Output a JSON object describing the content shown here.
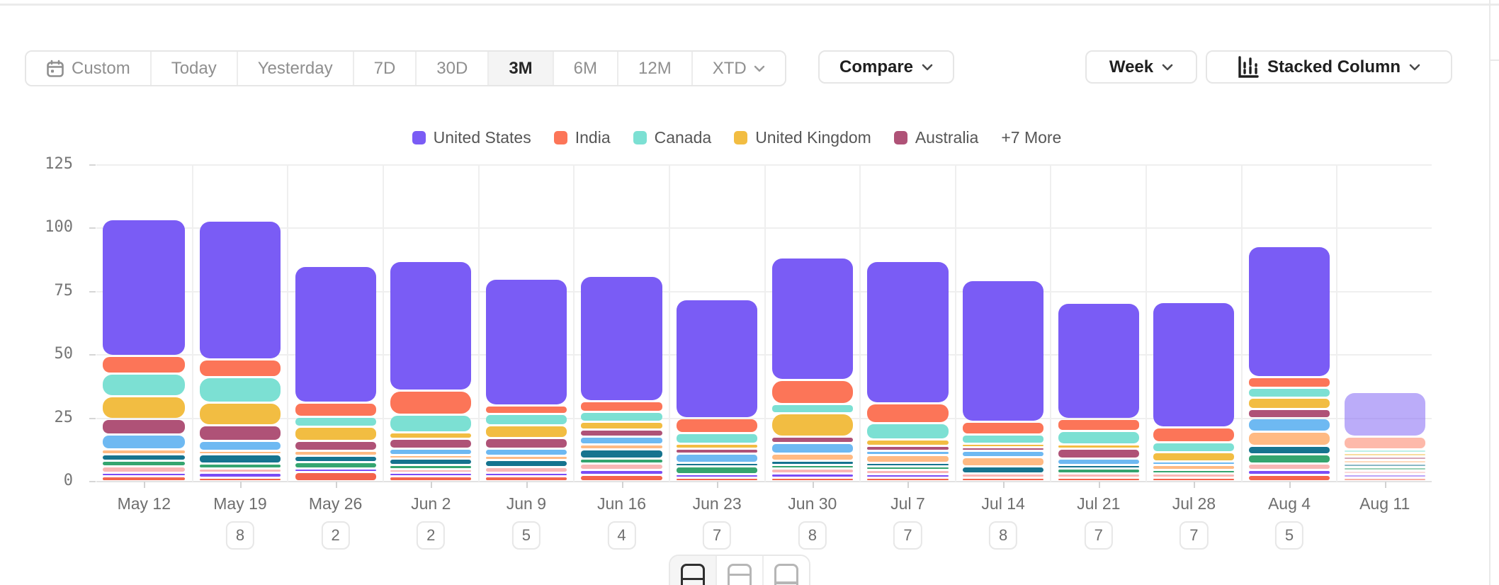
{
  "toolbar": {
    "date_ranges": [
      {
        "label": "Custom",
        "icon": "calendar-icon",
        "selected": false
      },
      {
        "label": "Today",
        "selected": false
      },
      {
        "label": "Yesterday",
        "selected": false
      },
      {
        "label": "7D",
        "selected": false
      },
      {
        "label": "30D",
        "selected": false
      },
      {
        "label": "3M",
        "selected": true
      },
      {
        "label": "6M",
        "selected": false
      },
      {
        "label": "12M",
        "selected": false
      },
      {
        "label": "XTD",
        "selected": false,
        "chevron": true
      }
    ],
    "compare_label": "Compare",
    "granularity_label": "Week",
    "chart_type_label": "Stacked Column"
  },
  "legend": {
    "items": [
      {
        "label": "United States",
        "color": "#7A5CF5"
      },
      {
        "label": "India",
        "color": "#FC7558"
      },
      {
        "label": "Canada",
        "color": "#7CE0D3"
      },
      {
        "label": "United Kingdom",
        "color": "#F2BD42"
      },
      {
        "label": "Australia",
        "color": "#AF5277"
      }
    ],
    "more_label": "+7 More"
  },
  "chart_data": {
    "type": "bar",
    "stacked": true,
    "legend_position": "top",
    "ylim": [
      0,
      125
    ],
    "yticks": [
      0,
      25,
      50,
      75,
      100,
      125
    ],
    "categories": [
      "May 12",
      "May 19",
      "May 26",
      "Jun 2",
      "Jun 9",
      "Jun 16",
      "Jun 23",
      "Jun 30",
      "Jul 7",
      "Jul 14",
      "Jul 21",
      "Jul 28",
      "Aug 4",
      "Aug 11"
    ],
    "badges": [
      null,
      "8",
      "2",
      "2",
      "5",
      "4",
      "7",
      "8",
      "7",
      "8",
      "7",
      "7",
      "5",
      null
    ],
    "last_column_muted": true,
    "series": [
      {
        "name": "United States",
        "color": "#7A5CF5",
        "values": [
          54,
          55,
          54,
          51,
          50,
          49.5,
          47,
          48.5,
          56,
          56,
          46,
          49.5,
          52,
          17.5
        ]
      },
      {
        "name": "India",
        "color": "#FC7558",
        "values": [
          7,
          7,
          5.5,
          9.5,
          3.5,
          4,
          6,
          9.5,
          8,
          5,
          4.5,
          6,
          4,
          5
        ]
      },
      {
        "name": "Canada",
        "color": "#7CE0D3",
        "values": [
          9,
          10,
          4,
          7,
          4.5,
          4,
          4,
          3.5,
          6.5,
          3.5,
          5.5,
          4,
          4,
          1
        ]
      },
      {
        "name": "United Kingdom",
        "color": "#F2BD42",
        "values": [
          9,
          9,
          5.5,
          2.5,
          5,
          3,
          2,
          9.5,
          2.5,
          1.5,
          1.5,
          3.5,
          4.5,
          1.5
        ]
      },
      {
        "name": "Australia",
        "color": "#AF5277",
        "values": [
          6,
          6,
          4,
          4,
          4,
          3,
          2,
          2.5,
          2,
          1,
          4,
          0,
          3.5,
          0.5
        ]
      },
      {
        "name": "",
        "color": "#6EB9F2",
        "values": [
          6,
          4,
          0,
          2.5,
          3,
          3,
          3.5,
          4,
          1.5,
          2.5,
          2.5,
          1,
          5.5,
          0
        ]
      },
      {
        "name": "",
        "color": "#FFBA83",
        "values": [
          2,
          1.5,
          2,
          1.5,
          1.5,
          2,
          0,
          3,
          3,
          3.5,
          0,
          2,
          5.5,
          1
        ]
      },
      {
        "name": "",
        "color": "#16748F",
        "values": [
          2.5,
          3.5,
          2.5,
          2.5,
          3,
          3.5,
          1.5,
          1.5,
          1.5,
          3,
          1.5,
          0,
          3.5,
          0.5
        ]
      },
      {
        "name": "",
        "color": "#35A56F",
        "values": [
          2,
          2,
          2.5,
          1.5,
          0,
          2,
          3,
          1.5,
          1.5,
          0,
          2,
          1.5,
          3.5,
          0.5
        ]
      },
      {
        "name": "",
        "color": "#F9B7B5",
        "values": [
          2.5,
          1.5,
          0,
          1.5,
          2,
          2.5,
          0,
          2,
          1.5,
          1.5,
          1.5,
          1.5,
          2.5,
          0.5
        ]
      },
      {
        "name": "",
        "color": "#7B4DF5",
        "values": [
          1.5,
          2,
          1.5,
          1,
          1.5,
          2,
          1,
          1.5,
          1,
          0,
          0,
          0,
          2,
          0.5
        ]
      },
      {
        "name": "",
        "color": "#F4644C",
        "values": [
          2,
          1.5,
          3.5,
          2,
          2,
          2.5,
          1.5,
          1.5,
          1.5,
          1.5,
          1.5,
          1.5,
          2.5,
          1
        ]
      }
    ]
  },
  "footer": {
    "view_options": [
      {
        "name": "layout-split-middle",
        "selected": true
      },
      {
        "name": "layout-split-top",
        "selected": false
      },
      {
        "name": "layout-split-low",
        "selected": false
      }
    ]
  }
}
